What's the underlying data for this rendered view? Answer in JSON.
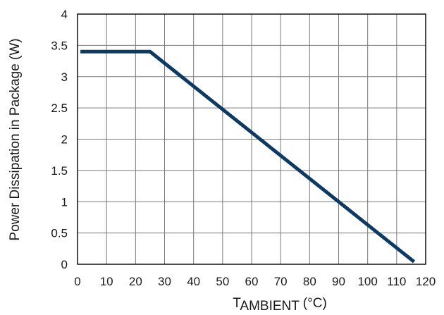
{
  "chart_data": {
    "type": "line",
    "xlabel_main": "T",
    "xlabel_sub": "AMBIENT",
    "xlabel_unit": " (°C)",
    "ylabel": "Power Dissipation in Package (W)",
    "xlim": [
      0,
      120
    ],
    "ylim": [
      0,
      4
    ],
    "x_ticks": [
      "0",
      "10",
      "20",
      "30",
      "40",
      "50",
      "60",
      "70",
      "80",
      "90",
      "100",
      "110",
      "120"
    ],
    "y_ticks": [
      "0",
      "0.5",
      "1",
      "1.5",
      "2",
      "2.5",
      "3",
      "3.5",
      "4"
    ],
    "grid": true,
    "line_color": "#0d3a63",
    "series": [
      {
        "x": [
          1,
          25,
          116
        ],
        "y": [
          3.4,
          3.4,
          0.04
        ]
      }
    ]
  }
}
